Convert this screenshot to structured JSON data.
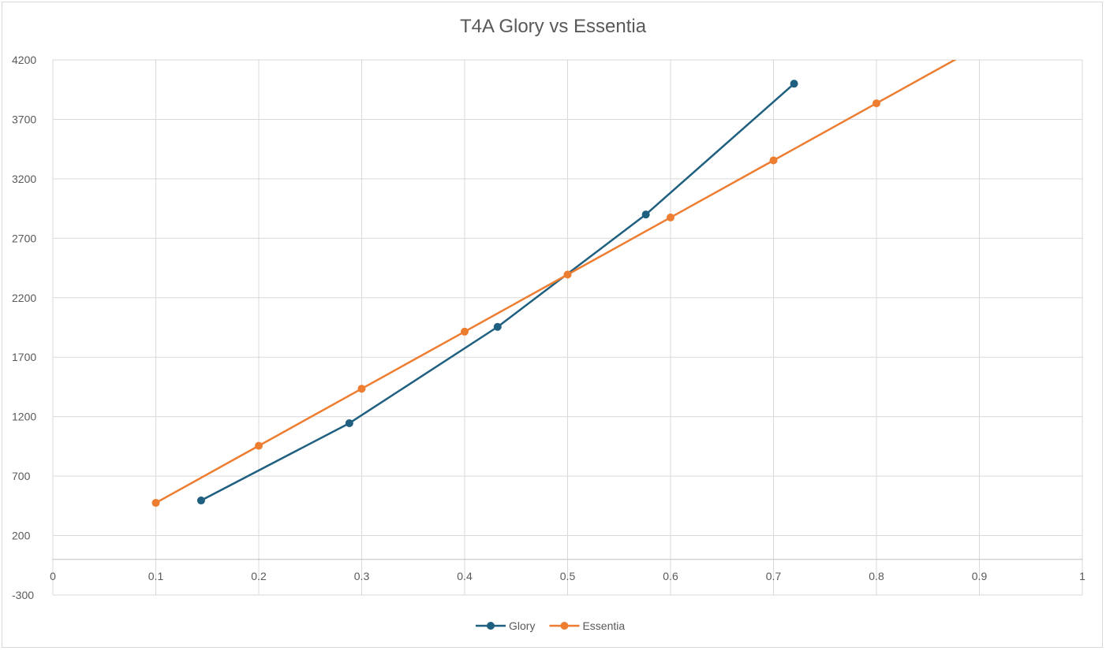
{
  "chart_data": {
    "type": "line",
    "title": "T4A Glory vs Essentia",
    "xlabel": "",
    "ylabel": "",
    "xlim": [
      0,
      1
    ],
    "ylim": [
      -300,
      4200
    ],
    "x_ticks": [
      0,
      0.1,
      0.2,
      0.3,
      0.4,
      0.5,
      0.6,
      0.7,
      0.8,
      0.9,
      1
    ],
    "x_tick_labels": [
      "0",
      "0.1",
      "0.2",
      "0.3",
      "0.4",
      "0.5",
      "0.6",
      "0.7",
      "0.8",
      "0.9",
      "1"
    ],
    "y_ticks": [
      -300,
      200,
      700,
      1200,
      1700,
      2200,
      2700,
      3200,
      3700,
      4200
    ],
    "y_tick_labels": [
      "-300",
      "200",
      "700",
      "1200",
      "1700",
      "2200",
      "2700",
      "3200",
      "3700",
      "4200"
    ],
    "grid": true,
    "legend_position": "bottom",
    "series": [
      {
        "name": "Glory",
        "color": "#1f5f7f",
        "points": [
          [
            0.144,
            495
          ],
          [
            0.288,
            1145
          ],
          [
            0.432,
            1955
          ],
          [
            0.576,
            2900
          ],
          [
            0.72,
            4000
          ]
        ]
      },
      {
        "name": "Essentia",
        "color": "#ed7d31",
        "points": [
          [
            0.1,
            475
          ],
          [
            0.2,
            955
          ],
          [
            0.3,
            1435
          ],
          [
            0.4,
            1915
          ],
          [
            0.5,
            2395
          ],
          [
            0.6,
            2875
          ],
          [
            0.7,
            3355
          ],
          [
            0.8,
            3835
          ],
          [
            0.9,
            4315
          ]
        ],
        "marker_count": 8
      }
    ]
  }
}
